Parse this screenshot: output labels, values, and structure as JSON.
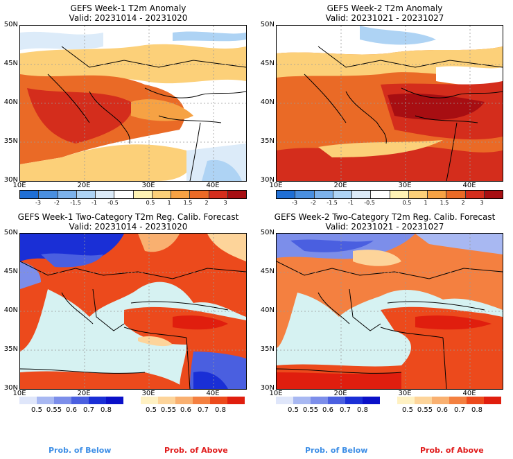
{
  "panels": [
    {
      "title": "GEFS Week-1 T2m Anomaly",
      "valid": "Valid: 20231014 - 20231020"
    },
    {
      "title": "GEFS Week-2 T2m Anomaly",
      "valid": "Valid: 20231021 - 20231027"
    },
    {
      "title": "GEFS Week-1 Two-Category T2m Reg. Calib. Forecast",
      "valid": "Valid: 20231014 - 20231020"
    },
    {
      "title": "GEFS Week-2 Two-Category T2m Reg. Calib. Forecast",
      "valid": "Valid: 20231021 - 20231027"
    }
  ],
  "lat_labels": [
    "50N",
    "45N",
    "40N",
    "35N",
    "30N"
  ],
  "lon_labels": [
    "10E",
    "20E",
    "30E",
    "40E"
  ],
  "anomaly_colorbar": {
    "labels": [
      "-3",
      "-2",
      "-1.5",
      "-1",
      "-0.5",
      "0.5",
      "1",
      "1.5",
      "2",
      "3"
    ],
    "colors": [
      "#1f6fd6",
      "#4a8fe0",
      "#7cb2ec",
      "#aed3f4",
      "#dcebf9",
      "#ffffff",
      "#fff3b4",
      "#fcd079",
      "#f6a244",
      "#ea6a26",
      "#d42d1c",
      "#a70e12"
    ]
  },
  "prob_below_bar": {
    "labels": [
      "0.5",
      "0.55",
      "0.6",
      "0.7",
      "0.8"
    ],
    "colors": [
      "#dfe6fa",
      "#a8b8f2",
      "#7c8eea",
      "#4a5fe0",
      "#1a2fd6",
      "#0a10c8"
    ]
  },
  "prob_above_bar": {
    "labels": [
      "0.5",
      "0.55",
      "0.6",
      "0.7",
      "0.8"
    ],
    "colors": [
      "#fff1c2",
      "#fdd49a",
      "#f9b070",
      "#f48040",
      "#ec4a1c",
      "#e01e0e"
    ]
  },
  "legend": {
    "below": "Prob. of Below",
    "above": "Prob. of Above",
    "below_color": "#3d8ee6",
    "above_color": "#e01b1b"
  },
  "map_colors": {
    "sea": "#d6f2f2",
    "land_neutral": "#ffffff"
  }
}
